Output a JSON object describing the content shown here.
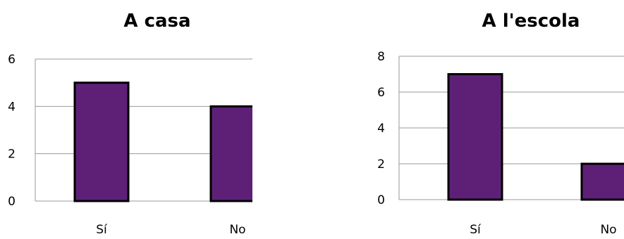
{
  "chart_data": [
    {
      "type": "bar",
      "title": "A casa",
      "categories": [
        "Sí",
        "No"
      ],
      "values": [
        5,
        4
      ],
      "ylim": [
        0,
        6
      ],
      "yticks": [
        0,
        2,
        4,
        6
      ],
      "xlabel": "",
      "ylabel": "",
      "grid": true,
      "legend": "none",
      "bar_color": "#5e2077"
    },
    {
      "type": "bar",
      "title": "A l'escola",
      "categories": [
        "Sí",
        "No"
      ],
      "values": [
        7,
        2
      ],
      "ylim": [
        0,
        8
      ],
      "yticks": [
        0,
        2,
        4,
        6,
        8
      ],
      "xlabel": "",
      "ylabel": "",
      "grid": true,
      "legend": "none",
      "bar_color": "#5e2077"
    }
  ]
}
